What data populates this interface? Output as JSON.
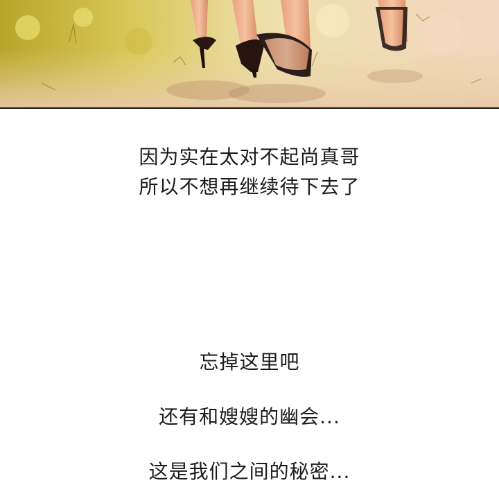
{
  "panel": {
    "description_name": "comic-panel-feet-walking"
  },
  "captions": {
    "line1": "因为实在太对不起尚真哥",
    "line2": "所以不想再继续待下去了",
    "line3": "忘掉这里吧",
    "line4": "还有和嫂嫂的幽会...",
    "line5": "这是我们之间的秘密..."
  },
  "colors": {
    "background": "#ffffff",
    "text": "#1b1b1b",
    "panel_border": "#1a1008"
  }
}
